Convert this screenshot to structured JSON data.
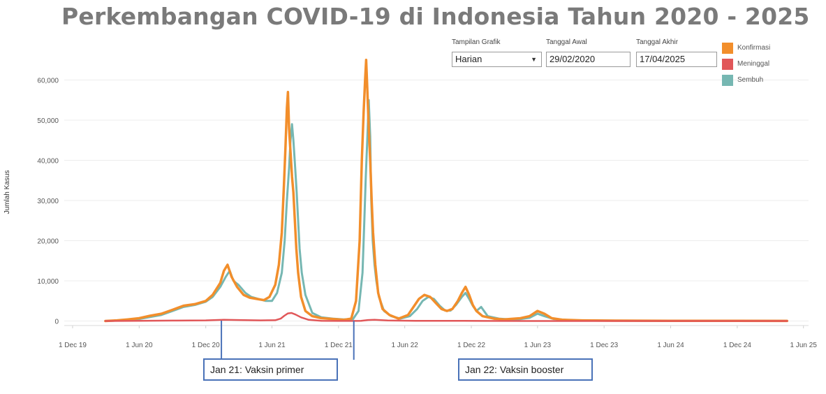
{
  "title": "Perkembangan COVID-19 di Indonesia Tahun 2020 - 2025",
  "controls": {
    "view_label": "Tampilan Grafik",
    "view_value": "Harian",
    "start_label": "Tanggal Awal",
    "start_value": "29/02/2020",
    "end_label": "Tanggal Akhir",
    "end_value": "17/04/2025"
  },
  "legend": [
    {
      "label": "Konfirmasi",
      "color": "#f28e2b"
    },
    {
      "label": "Meninggal",
      "color": "#e15759"
    },
    {
      "label": "Sembuh",
      "color": "#76b7b2"
    }
  ],
  "annotations": [
    {
      "label": "Jan 21: Vaksin primer",
      "date": "2021-01-13"
    },
    {
      "label": "Jan 22: Vaksin booster",
      "date": "2022-01-12"
    }
  ],
  "chart_data": {
    "type": "line",
    "title": "Perkembangan COVID-19 di Indonesia Tahun 2020 - 2025",
    "xlabel": "",
    "ylabel": "Jumlah Kasus",
    "xlim": [
      "2019-11-08",
      "2025-06-15"
    ],
    "ylim": [
      -2000,
      68000
    ],
    "grid": true,
    "legend_position": "top-right",
    "y_ticks": [
      0,
      10000,
      20000,
      30000,
      40000,
      50000,
      60000
    ],
    "y_tick_labels": [
      "0",
      "10,000",
      "20,000",
      "30,000",
      "40,000",
      "50,000",
      "60,000"
    ],
    "x_ticks": [
      "2019-12-01",
      "2020-06-01",
      "2020-12-01",
      "2021-06-01",
      "2021-12-01",
      "2022-06-01",
      "2022-12-01",
      "2023-06-01",
      "2023-12-01",
      "2024-06-01",
      "2024-12-01",
      "2025-06-01"
    ],
    "x_tick_labels": [
      "1 Dec 19",
      "1 Jun 20",
      "1 Dec 20",
      "1 Jun 21",
      "1 Dec 21",
      "1 Jun 22",
      "1 Dec 22",
      "1 Jun 23",
      "1 Dec 23",
      "1 Jun 24",
      "1 Dec 24",
      "1 Jun 25"
    ],
    "series": [
      {
        "name": "Konfirmasi",
        "color": "#f28e2b",
        "x": [
          "2020-02-29",
          "2020-04-01",
          "2020-05-01",
          "2020-06-01",
          "2020-07-01",
          "2020-08-01",
          "2020-09-01",
          "2020-10-01",
          "2020-11-01",
          "2020-12-01",
          "2020-12-20",
          "2021-01-10",
          "2021-01-20",
          "2021-01-30",
          "2021-02-10",
          "2021-02-25",
          "2021-03-15",
          "2021-04-01",
          "2021-04-20",
          "2021-05-10",
          "2021-05-25",
          "2021-06-10",
          "2021-06-20",
          "2021-06-28",
          "2021-07-04",
          "2021-07-08",
          "2021-07-12",
          "2021-07-15",
          "2021-07-18",
          "2021-07-22",
          "2021-07-26",
          "2021-07-30",
          "2021-08-03",
          "2021-08-07",
          "2021-08-12",
          "2021-08-20",
          "2021-09-01",
          "2021-09-20",
          "2021-10-15",
          "2021-11-15",
          "2021-12-15",
          "2022-01-05",
          "2022-01-18",
          "2022-01-28",
          "2022-02-03",
          "2022-02-08",
          "2022-02-12",
          "2022-02-15",
          "2022-02-18",
          "2022-02-22",
          "2022-02-26",
          "2022-03-02",
          "2022-03-06",
          "2022-03-12",
          "2022-03-20",
          "2022-04-01",
          "2022-04-20",
          "2022-05-15",
          "2022-06-10",
          "2022-06-25",
          "2022-07-10",
          "2022-07-25",
          "2022-08-10",
          "2022-08-25",
          "2022-09-10",
          "2022-09-25",
          "2022-10-10",
          "2022-10-25",
          "2022-11-05",
          "2022-11-15",
          "2022-11-25",
          "2022-12-05",
          "2022-12-15",
          "2023-01-01",
          "2023-02-01",
          "2023-03-01",
          "2023-04-15",
          "2023-05-10",
          "2023-06-01",
          "2023-06-20",
          "2023-07-10",
          "2023-08-10",
          "2023-10-01",
          "2024-01-01",
          "2024-06-01",
          "2024-12-01",
          "2025-04-17"
        ],
        "y": [
          0,
          150,
          400,
          700,
          1300,
          1800,
          2800,
          3800,
          4200,
          5000,
          6500,
          9500,
          12500,
          14000,
          11000,
          8500,
          6500,
          5800,
          5500,
          5200,
          6000,
          9000,
          14000,
          22000,
          34000,
          43000,
          53000,
          57000,
          48000,
          42000,
          36000,
          32000,
          25000,
          18000,
          12000,
          6000,
          2500,
          1200,
          700,
          500,
          300,
          600,
          5000,
          20000,
          40000,
          52000,
          60000,
          65000,
          58000,
          48000,
          40000,
          30000,
          22000,
          14000,
          7000,
          3000,
          1500,
          600,
          1500,
          3500,
          5500,
          6500,
          6000,
          4500,
          3000,
          2500,
          3000,
          5000,
          7000,
          8500,
          6500,
          4000,
          2500,
          1200,
          600,
          400,
          700,
          1200,
          2500,
          1800,
          700,
          300,
          150,
          80,
          50,
          30,
          20
        ]
      },
      {
        "name": "Meninggal",
        "color": "#e15759",
        "x": [
          "2020-02-29",
          "2020-06-01",
          "2020-09-01",
          "2020-12-01",
          "2021-01-20",
          "2021-03-01",
          "2021-05-01",
          "2021-06-10",
          "2021-06-25",
          "2021-07-05",
          "2021-07-15",
          "2021-07-25",
          "2021-08-05",
          "2021-08-20",
          "2021-09-10",
          "2021-10-15",
          "2021-12-01",
          "2022-02-01",
          "2022-02-20",
          "2022-03-10",
          "2022-04-15",
          "2022-07-01",
          "2022-09-01",
          "2022-11-10",
          "2023-01-01",
          "2023-06-01",
          "2024-01-01",
          "2025-04-17"
        ],
        "y": [
          0,
          50,
          100,
          150,
          300,
          250,
          150,
          200,
          600,
          1300,
          1900,
          2000,
          1600,
          900,
          300,
          50,
          10,
          30,
          250,
          300,
          120,
          40,
          30,
          60,
          20,
          5,
          1,
          0
        ]
      },
      {
        "name": "Sembuh",
        "color": "#76b7b2",
        "x": [
          "2020-02-29",
          "2020-04-01",
          "2020-05-01",
          "2020-06-01",
          "2020-07-01",
          "2020-08-01",
          "2020-09-01",
          "2020-10-01",
          "2020-11-01",
          "2020-12-01",
          "2020-12-20",
          "2021-01-10",
          "2021-01-25",
          "2021-02-05",
          "2021-02-15",
          "2021-03-01",
          "2021-03-20",
          "2021-04-05",
          "2021-04-25",
          "2021-05-15",
          "2021-06-01",
          "2021-06-15",
          "2021-06-28",
          "2021-07-06",
          "2021-07-12",
          "2021-07-18",
          "2021-07-22",
          "2021-07-26",
          "2021-07-30",
          "2021-08-04",
          "2021-08-08",
          "2021-08-12",
          "2021-08-16",
          "2021-08-22",
          "2021-09-01",
          "2021-09-20",
          "2021-10-15",
          "2021-11-15",
          "2021-12-15",
          "2022-01-10",
          "2022-01-25",
          "2022-02-05",
          "2022-02-10",
          "2022-02-14",
          "2022-02-18",
          "2022-02-22",
          "2022-02-26",
          "2022-03-01",
          "2022-03-05",
          "2022-03-10",
          "2022-03-15",
          "2022-03-22",
          "2022-04-05",
          "2022-04-25",
          "2022-05-20",
          "2022-06-15",
          "2022-07-05",
          "2022-07-20",
          "2022-08-05",
          "2022-08-20",
          "2022-09-05",
          "2022-09-20",
          "2022-10-05",
          "2022-10-20",
          "2022-11-05",
          "2022-11-15",
          "2022-11-25",
          "2022-12-05",
          "2022-12-15",
          "2022-12-28",
          "2023-01-15",
          "2023-02-15",
          "2023-04-01",
          "2023-05-10",
          "2023-06-01",
          "2023-06-20",
          "2023-07-15",
          "2023-09-01",
          "2023-12-01",
          "2024-06-01",
          "2024-12-01",
          "2025-04-17"
        ],
        "y": [
          0,
          100,
          300,
          500,
          1000,
          1500,
          2500,
          3500,
          4000,
          4800,
          6000,
          8500,
          11000,
          12500,
          10000,
          9000,
          7000,
          6000,
          5500,
          5000,
          5000,
          7000,
          12000,
          20000,
          30000,
          38000,
          45000,
          49000,
          45000,
          38000,
          32000,
          25000,
          18000,
          12000,
          6500,
          2000,
          900,
          600,
          400,
          500,
          2500,
          12000,
          25000,
          36000,
          45000,
          55000,
          46000,
          30000,
          20000,
          14000,
          10000,
          6000,
          2500,
          1200,
          600,
          1200,
          3000,
          5000,
          6000,
          5500,
          3800,
          2600,
          2600,
          4000,
          6000,
          7000,
          5500,
          3800,
          2500,
          3500,
          1200,
          600,
          300,
          800,
          1800,
          1200,
          500,
          200,
          100,
          50,
          30,
          20
        ]
      }
    ]
  }
}
